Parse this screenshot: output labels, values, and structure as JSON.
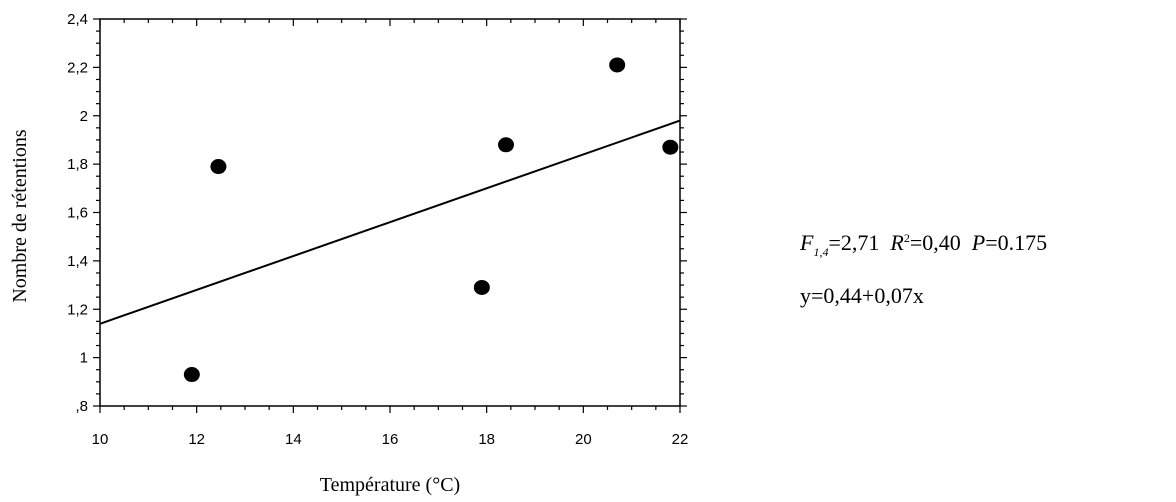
{
  "chart_data": {
    "type": "scatter",
    "xlabel": "Température (°C)",
    "ylabel": "Nombre de rétentions",
    "xlim": [
      10,
      22
    ],
    "ylim": [
      0.8,
      2.4
    ],
    "x_ticks": [
      10,
      12,
      14,
      16,
      18,
      20,
      22
    ],
    "x_tick_labels": [
      "10",
      "12",
      "14",
      "16",
      "18",
      "20",
      "22"
    ],
    "y_ticks": [
      0.8,
      1.0,
      1.2,
      1.4,
      1.6,
      1.8,
      2.0,
      2.2,
      2.4
    ],
    "y_tick_labels": [
      ",8",
      "1",
      "1,2",
      "1,4",
      "1,6",
      "1,8",
      "2",
      "2,2",
      "2,4"
    ],
    "points": [
      {
        "x": 11.9,
        "y": 0.93
      },
      {
        "x": 12.45,
        "y": 1.79
      },
      {
        "x": 17.9,
        "y": 1.29
      },
      {
        "x": 18.4,
        "y": 1.88
      },
      {
        "x": 20.7,
        "y": 2.21
      },
      {
        "x": 21.8,
        "y": 1.87
      }
    ],
    "regression": {
      "intercept": 0.44,
      "slope": 0.07
    },
    "grid": false
  },
  "stats": {
    "f_letter": "F",
    "f_df": "1,4",
    "f_value": "=2,71",
    "r_letter": "R",
    "r_exp": "2",
    "r_value": "=0,40",
    "p_letter": "P",
    "p_value": "=0.175"
  },
  "equation": "y=0,44+0,07x"
}
